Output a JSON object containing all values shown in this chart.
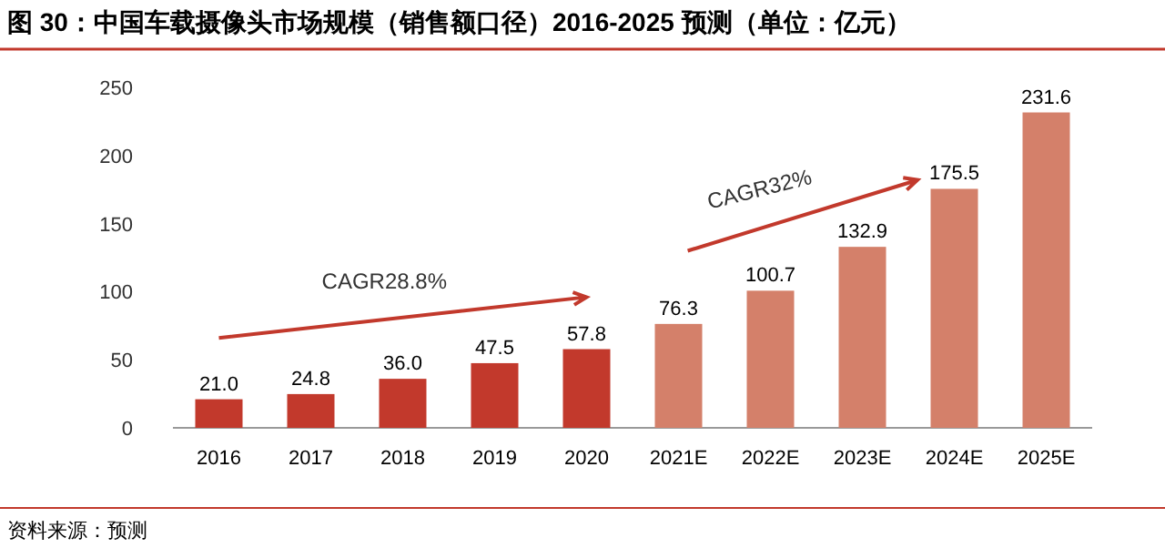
{
  "chart_data": {
    "type": "bar",
    "title": "图 30：中国车载摄像头市场规模（销售额口径）2016-2025 预测（单位：亿元）",
    "categories": [
      "2016",
      "2017",
      "2018",
      "2019",
      "2020",
      "2021E",
      "2022E",
      "2023E",
      "2024E",
      "2025E"
    ],
    "values": [
      21.0,
      24.8,
      36.0,
      47.5,
      57.8,
      76.3,
      100.7,
      132.9,
      175.5,
      231.6
    ],
    "value_labels": [
      "21.0",
      "24.8",
      "36.0",
      "47.5",
      "57.8",
      "76.3",
      "100.7",
      "132.9",
      "175.5",
      "231.6"
    ],
    "colors": [
      "#c2392c",
      "#c2392c",
      "#c2392c",
      "#c2392c",
      "#c2392c",
      "#d4806a",
      "#d4806a",
      "#d4806a",
      "#d4806a",
      "#d4806a"
    ],
    "ylim": [
      0,
      250
    ],
    "yticks": [
      0,
      50,
      100,
      150,
      200,
      250
    ],
    "grid": false,
    "annotations": [
      "CAGR28.8%",
      "CAGR32%",
      "资料来源：预测"
    ]
  }
}
